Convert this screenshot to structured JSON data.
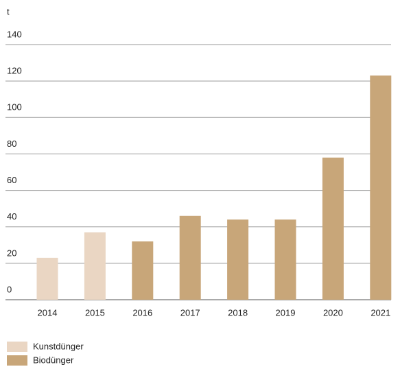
{
  "chart_data": {
    "type": "bar",
    "y_label": "t",
    "categories": [
      "2014",
      "2015",
      "2016",
      "2017",
      "2018",
      "2019",
      "2020",
      "2021"
    ],
    "series": [
      {
        "name": "Kunstdünger",
        "color": "#ead6c3",
        "values": [
          23,
          37,
          null,
          null,
          null,
          null,
          null,
          null
        ]
      },
      {
        "name": "Biodünger",
        "color": "#c8a679",
        "values": [
          null,
          null,
          32,
          46,
          44,
          44,
          78,
          123
        ]
      }
    ],
    "ylim": [
      0,
      140
    ],
    "yticks": [
      0,
      20,
      40,
      60,
      80,
      100,
      120,
      140
    ],
    "grid": true
  }
}
